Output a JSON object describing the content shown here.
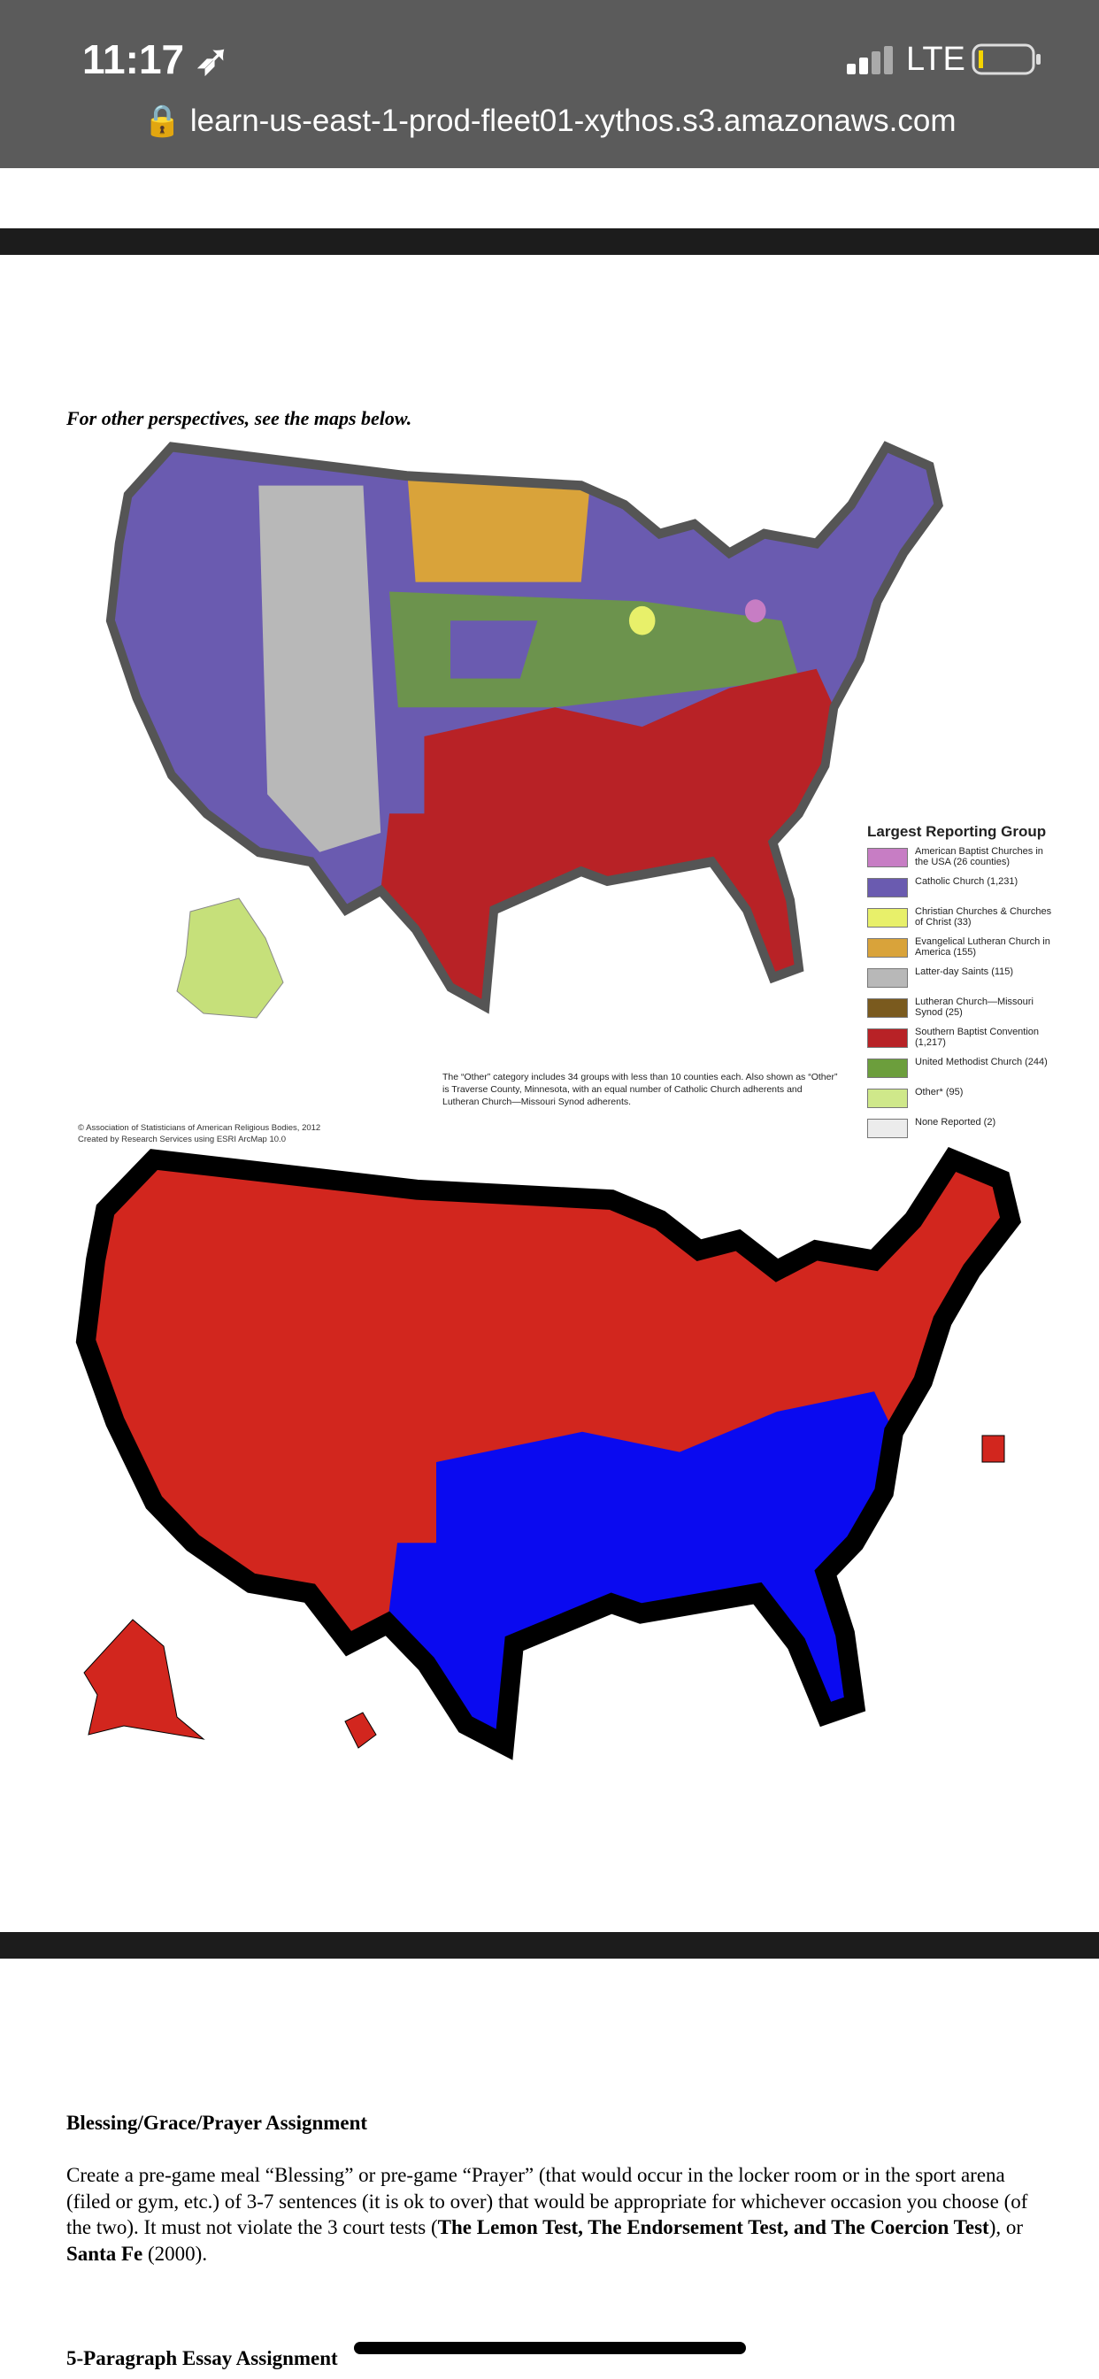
{
  "status_bar": {
    "time": "11:17",
    "network": "LTE"
  },
  "address_bar": {
    "url": "learn-us-east-1-prod-fleet01-xythos.s3.amazonaws.com"
  },
  "document": {
    "intro": "For other perspectives, see the maps below.",
    "map": {
      "legend_title": "Largest Reporting Group",
      "legend": [
        "American Baptist Churches in the USA (26 counties)",
        "Catholic Church (1,231)",
        "Christian Churches & Churches of Christ (33)",
        "Evangelical Lutheran Church in America (155)",
        "Latter-day Saints (115)",
        "Lutheran Church—Missouri Synod (25)",
        "Southern Baptist Convention (1,217)",
        "United Methodist Church (244)",
        "Other* (95)",
        "None Reported (2)"
      ],
      "note": "The “Other” category includes 34 groups with less than 10 counties each. Also shown as “Other” is Traverse County, Minnesota, with an equal number of Catholic Church adherents and Lutheran Church—Missouri Synod adherents.",
      "credit": [
        "© Association of Statisticians of American Religious Bodies, 2012",
        "Created by Research Services using ESRI ArcMap 10.0"
      ]
    },
    "assignment": {
      "heading": "Blessing/Grace/Prayer Assignment",
      "body": [
        {
          "text": "Create a pre-game meal “Blessing” or pre-game “Prayer” (that would occur in the locker room or in the sport arena (filed or gym, etc.) of 3-7 sentences (it is ok to over) that would be appropriate for whichever occasion you choose (of the two).  It must not violate the 3 court tests (",
          "bold": false
        },
        {
          "text": "The Lemon Test, The Endorsement Test, and The Coercion Test",
          "bold": true
        },
        {
          "text": "), or ",
          "bold": false
        },
        {
          "text": "Santa Fe",
          "bold": true
        },
        {
          "text": " (2000).",
          "bold": false
        }
      ]
    },
    "next_heading": "5-Paragraph Essay Assignment"
  }
}
